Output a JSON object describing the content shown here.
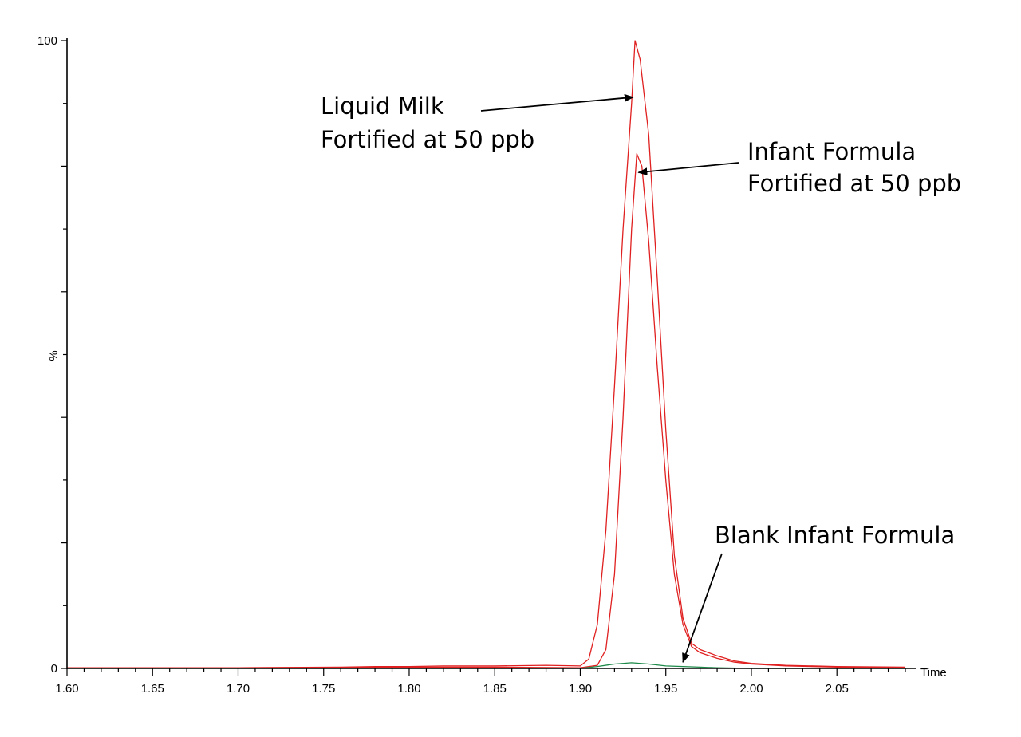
{
  "chart_data": {
    "type": "line",
    "xlabel": "Time",
    "ylabel": "%",
    "xlim": [
      1.6,
      2.09
    ],
    "ylim": [
      0,
      100
    ],
    "x_ticks": [
      "1.60",
      "1.65",
      "1.70",
      "1.75",
      "1.80",
      "1.85",
      "1.90",
      "1.95",
      "2.00",
      "2.05"
    ],
    "y_ticks": [
      "0",
      "100"
    ],
    "series": [
      {
        "color": "#e02020",
        "x": [
          1.6,
          1.7,
          1.76,
          1.78,
          1.8,
          1.82,
          1.85,
          1.88,
          1.9,
          1.905,
          1.91,
          1.915,
          1.92,
          1.925,
          1.93,
          1.932,
          1.935,
          1.94,
          1.945,
          1.95,
          1.955,
          1.96,
          1.965,
          1.97,
          1.98,
          1.99,
          2.0,
          2.02,
          2.05,
          2.09
        ],
        "y": [
          0.1,
          0.1,
          0.2,
          0.3,
          0.3,
          0.4,
          0.4,
          0.5,
          0.4,
          1.5,
          7,
          22,
          45,
          70,
          90,
          100,
          97,
          85,
          62,
          38,
          18,
          8,
          4,
          3,
          2,
          1.2,
          0.8,
          0.5,
          0.3,
          0.2
        ]
      },
      {
        "color": "#e02020",
        "x": [
          1.6,
          1.7,
          1.8,
          1.85,
          1.9,
          1.91,
          1.915,
          1.92,
          1.925,
          1.93,
          1.933,
          1.936,
          1.94,
          1.945,
          1.95,
          1.955,
          1.96,
          1.965,
          1.97,
          1.98,
          1.99,
          2.0,
          2.02,
          2.05,
          2.09
        ],
        "y": [
          0.1,
          0.1,
          0.2,
          0.2,
          0.1,
          0.5,
          3,
          15,
          40,
          70,
          82,
          80,
          68,
          48,
          30,
          15,
          7,
          3.5,
          2.5,
          1.6,
          1,
          0.7,
          0.4,
          0.2,
          0.1
        ]
      },
      {
        "color": "#1e8a4a",
        "x": [
          1.6,
          1.85,
          1.9,
          1.91,
          1.92,
          1.93,
          1.94,
          1.95,
          1.96,
          1.97,
          1.98,
          2.0,
          2.09
        ],
        "y": [
          0,
          0,
          0,
          0.3,
          0.7,
          0.9,
          0.7,
          0.4,
          0.3,
          0.2,
          0.1,
          0,
          0
        ]
      }
    ],
    "annotations": [
      {
        "lines": [
          "Liquid Milk",
          "Fortified at 50 ppb"
        ],
        "target": [
          1.931,
          91
        ]
      },
      {
        "lines": [
          "Infant Formula",
          "Fortified at 50 ppb"
        ],
        "target": [
          1.934,
          79
        ]
      },
      {
        "lines": [
          "Blank Infant Formula"
        ],
        "target": [
          1.96,
          1
        ]
      }
    ]
  }
}
